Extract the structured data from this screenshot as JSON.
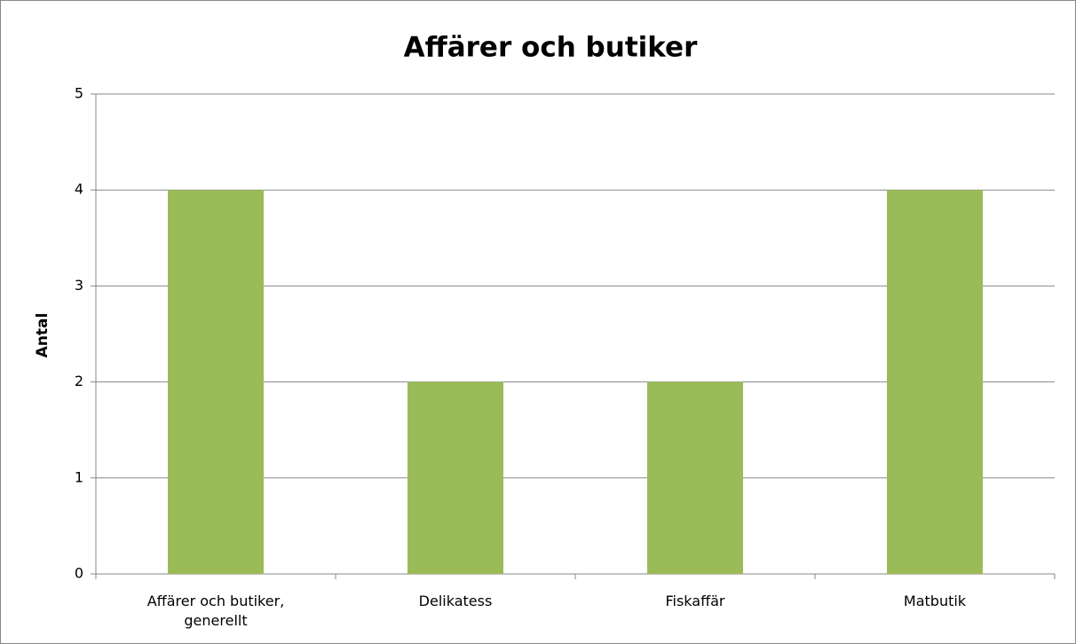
{
  "chart_data": {
    "type": "bar",
    "title": "Affärer och butiker",
    "ylabel": "Antal",
    "categories": [
      "Affärer och butiker, generellt",
      "Delikatess",
      "Fiskaffär",
      "Matbutik"
    ],
    "values": [
      4,
      2,
      2,
      4
    ],
    "color": "#9bbb59",
    "ylim": [
      0,
      5
    ],
    "yticks": [
      0,
      1,
      2,
      3,
      4,
      5
    ],
    "grid": true
  }
}
